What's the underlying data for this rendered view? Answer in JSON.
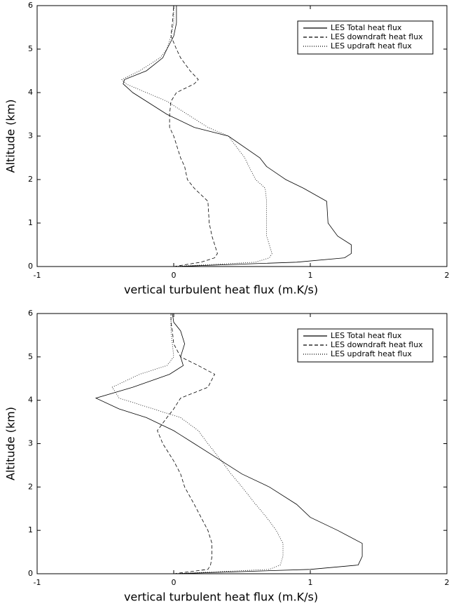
{
  "chart_data": [
    {
      "type": "line",
      "xlabel": "vertical turbulent heat flux (m.K/s)",
      "ylabel": "Altitude (km)",
      "xlim": [
        -1,
        2
      ],
      "ylim": [
        0,
        6
      ],
      "xticks": [
        -1,
        0,
        1,
        2
      ],
      "yticks": [
        0,
        1,
        2,
        3,
        4,
        5,
        6
      ],
      "legend": "upper right",
      "y": [
        0,
        0.1,
        0.2,
        0.3,
        0.5,
        0.7,
        1.0,
        1.5,
        1.8,
        2.0,
        2.3,
        2.5,
        3.0,
        3.2,
        3.5,
        3.8,
        4.0,
        4.2,
        4.3,
        4.5,
        4.8,
        5.0,
        5.3,
        5.6,
        6.0
      ],
      "series": [
        {
          "name": "LES Total heat flux",
          "color": "#000000",
          "dash": "solid",
          "values": [
            0.0,
            0.9,
            1.25,
            1.3,
            1.3,
            1.2,
            1.13,
            1.12,
            0.95,
            0.82,
            0.68,
            0.63,
            0.4,
            0.15,
            -0.05,
            -0.2,
            -0.3,
            -0.37,
            -0.36,
            -0.2,
            -0.08,
            -0.05,
            0.0,
            0.02,
            0.02
          ]
        },
        {
          "name": "LES downdraft heat flux",
          "color": "#000000",
          "dash": "dashed",
          "values": [
            0.0,
            0.2,
            0.3,
            0.32,
            0.3,
            0.28,
            0.26,
            0.25,
            0.15,
            0.1,
            0.08,
            0.05,
            0.0,
            -0.03,
            -0.03,
            -0.02,
            0.02,
            0.15,
            0.18,
            0.12,
            0.05,
            0.02,
            -0.02,
            -0.01,
            0.0
          ]
        },
        {
          "name": "LES updraft heat flux",
          "color": "#000000",
          "dash": "dotted",
          "values": [
            0.0,
            0.6,
            0.7,
            0.72,
            0.7,
            0.68,
            0.68,
            0.68,
            0.67,
            0.6,
            0.55,
            0.52,
            0.4,
            0.25,
            0.1,
            -0.05,
            -0.2,
            -0.35,
            -0.38,
            -0.25,
            -0.1,
            -0.05,
            -0.02,
            0.0,
            0.0
          ]
        }
      ]
    },
    {
      "type": "line",
      "xlabel": "vertical turbulent heat flux (m.K/s)",
      "ylabel": "Altitude (km)",
      "xlim": [
        -1,
        2
      ],
      "ylim": [
        0,
        6
      ],
      "xticks": [
        -1,
        0,
        1,
        2
      ],
      "yticks": [
        0,
        1,
        2,
        3,
        4,
        5,
        6
      ],
      "legend": "upper right",
      "y": [
        0,
        0.1,
        0.2,
        0.4,
        0.7,
        1.0,
        1.3,
        1.6,
        2.0,
        2.3,
        2.6,
        3.0,
        3.3,
        3.6,
        3.8,
        4.05,
        4.3,
        4.6,
        4.8,
        5.0,
        5.3,
        5.6,
        5.8,
        6.0
      ],
      "series": [
        {
          "name": "LES Total heat flux",
          "color": "#000000",
          "dash": "solid",
          "values": [
            0.0,
            1.0,
            1.35,
            1.38,
            1.38,
            1.2,
            1.0,
            0.9,
            0.7,
            0.5,
            0.35,
            0.15,
            0.0,
            -0.2,
            -0.4,
            -0.57,
            -0.3,
            -0.03,
            0.07,
            0.05,
            0.08,
            0.05,
            0.0,
            -0.01
          ]
        },
        {
          "name": "LES downdraft heat flux",
          "color": "#000000",
          "dash": "dashed",
          "values": [
            0.0,
            0.25,
            0.27,
            0.28,
            0.28,
            0.25,
            0.2,
            0.15,
            0.08,
            0.05,
            0.0,
            -0.08,
            -0.12,
            -0.05,
            0.0,
            0.05,
            0.25,
            0.3,
            0.18,
            0.05,
            0.0,
            -0.01,
            -0.02,
            -0.02
          ]
        },
        {
          "name": "LES updraft heat flux",
          "color": "#000000",
          "dash": "dotted",
          "values": [
            0.0,
            0.7,
            0.78,
            0.8,
            0.8,
            0.75,
            0.68,
            0.6,
            0.5,
            0.42,
            0.35,
            0.25,
            0.18,
            0.05,
            -0.15,
            -0.4,
            -0.45,
            -0.25,
            -0.05,
            0.0,
            -0.01,
            -0.02,
            -0.02,
            -0.02
          ]
        }
      ]
    }
  ]
}
